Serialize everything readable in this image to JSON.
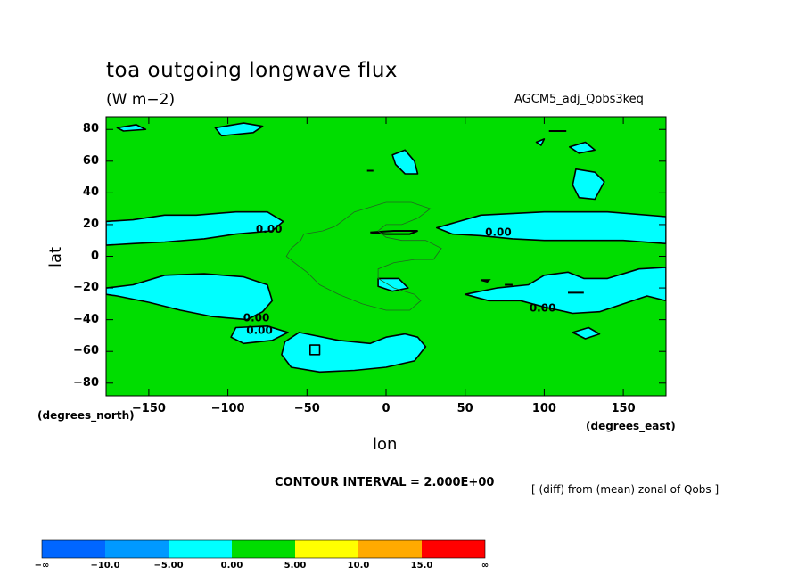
{
  "header": {
    "title": "toa outgoing longwave flux",
    "units": "(W m−2)",
    "model": "AGCM5_adj_Qobs3keq"
  },
  "axes": {
    "xlabel": "lon",
    "ylabel": "lat",
    "x_note": "(degrees_east)",
    "y_note": "(degrees_north)"
  },
  "footer": {
    "contour_interval": "CONTOUR INTERVAL = 2.000E+00",
    "diff_note": "[ (diff) from (mean) zonal of Qobs ]"
  },
  "chart_data": {
    "type": "heatmap",
    "x_ticks": [
      "−150",
      "−100",
      "−50",
      "0",
      "50",
      "100",
      "150"
    ],
    "x_tick_values": [
      -150,
      -100,
      -50,
      0,
      50,
      100,
      150
    ],
    "y_ticks": [
      "80",
      "60",
      "40",
      "20",
      "0",
      "−20",
      "−40",
      "−60",
      "−80"
    ],
    "y_tick_values": [
      80,
      60,
      40,
      20,
      0,
      -20,
      -40,
      -60,
      -80
    ],
    "xlim": [
      -177,
      177
    ],
    "ylim": [
      -88,
      88
    ],
    "grid": false,
    "contour_labels": [
      {
        "text": "0.00",
        "lon": -74,
        "lat": 17
      },
      {
        "text": "0.00",
        "lon": -82,
        "lat": -39
      },
      {
        "text": "0.00",
        "lon": -80,
        "lat": -47
      },
      {
        "text": "0.00",
        "lon": 71,
        "lat": 15
      },
      {
        "text": "0.00",
        "lon": 99,
        "lat": -33
      }
    ],
    "colorbar": {
      "colors": [
        "#0066ff",
        "#0099ff",
        "#00ffff",
        "#00dd00",
        "#ffff00",
        "#ffaa00",
        "#ff0000"
      ],
      "labels": [
        "−∞",
        "−10.0",
        "−5.00",
        "0.00",
        "5.00",
        "10.0",
        "15.0",
        "∞"
      ]
    },
    "regions": [
      {
        "level": "negative",
        "lon_lat": [
          [
            -177,
            22
          ],
          [
            -160,
            23
          ],
          [
            -140,
            26
          ],
          [
            -120,
            26
          ],
          [
            -95,
            28
          ],
          [
            -75,
            28
          ],
          [
            -65,
            22
          ],
          [
            -72,
            16
          ],
          [
            -95,
            14
          ],
          [
            -115,
            11
          ],
          [
            -140,
            9
          ],
          [
            -160,
            8
          ],
          [
            -177,
            7
          ]
        ]
      },
      {
        "level": "negative",
        "lon_lat": [
          [
            -177,
            -20
          ],
          [
            -160,
            -18
          ],
          [
            -140,
            -12
          ],
          [
            -115,
            -11
          ],
          [
            -90,
            -13
          ],
          [
            -75,
            -18
          ],
          [
            -72,
            -28
          ],
          [
            -78,
            -35
          ],
          [
            -88,
            -40
          ],
          [
            -110,
            -38
          ],
          [
            -130,
            -34
          ],
          [
            -150,
            -29
          ],
          [
            -170,
            -25
          ],
          [
            -177,
            -24
          ]
        ]
      },
      {
        "level": "negative",
        "lon_lat": [
          [
            -95,
            -45
          ],
          [
            -75,
            -44
          ],
          [
            -62,
            -48
          ],
          [
            -72,
            -53
          ],
          [
            -90,
            -55
          ],
          [
            -98,
            -51
          ]
        ]
      },
      {
        "level": "negative",
        "lon_lat": [
          [
            -64,
            -54
          ],
          [
            -55,
            -48
          ],
          [
            -30,
            -53
          ],
          [
            -10,
            -55
          ],
          [
            0,
            -51
          ],
          [
            12,
            -49
          ],
          [
            20,
            -51
          ],
          [
            25,
            -57
          ],
          [
            18,
            -66
          ],
          [
            0,
            -70
          ],
          [
            -20,
            -72
          ],
          [
            -42,
            -73
          ],
          [
            -60,
            -70
          ],
          [
            -66,
            -62
          ]
        ]
      },
      {
        "level": "negative",
        "lon_lat": [
          [
            -108,
            81
          ],
          [
            -90,
            84
          ],
          [
            -78,
            82
          ],
          [
            -84,
            78
          ],
          [
            -104,
            76
          ]
        ]
      },
      {
        "level": "negative",
        "lon_lat": [
          [
            -170,
            81
          ],
          [
            -158,
            83
          ],
          [
            -152,
            80
          ],
          [
            -166,
            79
          ]
        ]
      },
      {
        "level": "negative",
        "lon_lat": [
          [
            32,
            18
          ],
          [
            60,
            26
          ],
          [
            100,
            28
          ],
          [
            140,
            28
          ],
          [
            177,
            25
          ],
          [
            177,
            8
          ],
          [
            150,
            10
          ],
          [
            130,
            10
          ],
          [
            100,
            10
          ],
          [
            80,
            11
          ],
          [
            60,
            13
          ],
          [
            42,
            14
          ]
        ]
      },
      {
        "level": "negative",
        "lon_lat": [
          [
            50,
            -24
          ],
          [
            70,
            -20
          ],
          [
            90,
            -18
          ],
          [
            100,
            -12
          ],
          [
            115,
            -10
          ],
          [
            125,
            -14
          ],
          [
            140,
            -14
          ],
          [
            160,
            -8
          ],
          [
            177,
            -7
          ],
          [
            177,
            -28
          ],
          [
            165,
            -25
          ],
          [
            150,
            -30
          ],
          [
            135,
            -35
          ],
          [
            118,
            -36
          ],
          [
            100,
            -32
          ],
          [
            85,
            -28
          ],
          [
            65,
            -28
          ]
        ]
      },
      {
        "level": "negative",
        "lon_lat": [
          [
            118,
            -48
          ],
          [
            128,
            -45
          ],
          [
            135,
            -49
          ],
          [
            126,
            -52
          ]
        ]
      },
      {
        "level": "negative",
        "lon_lat": [
          [
            4,
            64
          ],
          [
            12,
            67
          ],
          [
            18,
            60
          ],
          [
            20,
            52
          ],
          [
            12,
            52
          ],
          [
            6,
            58
          ]
        ]
      },
      {
        "level": "negative",
        "lon_lat": [
          [
            120,
            55
          ],
          [
            132,
            53
          ],
          [
            138,
            47
          ],
          [
            132,
            36
          ],
          [
            122,
            37
          ],
          [
            118,
            45
          ]
        ]
      },
      {
        "level": "negative",
        "lon_lat": [
          [
            116,
            69
          ],
          [
            126,
            72
          ],
          [
            132,
            67
          ],
          [
            122,
            65
          ]
        ]
      },
      {
        "level": "negative",
        "lon_lat": [
          [
            -5,
            -14
          ],
          [
            8,
            -14
          ],
          [
            14,
            -20
          ],
          [
            4,
            -22
          ],
          [
            -5,
            -19
          ]
        ]
      },
      {
        "level": "negative",
        "lon_lat": [
          [
            -48,
            -56
          ],
          [
            -42,
            -56
          ],
          [
            -42,
            -62
          ],
          [
            -48,
            -62
          ]
        ]
      },
      {
        "level": "negative",
        "lon_lat": [
          [
            95,
            72
          ],
          [
            100,
            74
          ],
          [
            98,
            70
          ]
        ]
      }
    ],
    "zero_lines": [
      {
        "lon_lat": [
          [
            -10,
            15
          ],
          [
            0,
            14
          ],
          [
            15,
            14
          ],
          [
            20,
            16
          ],
          [
            5,
            16
          ],
          [
            -10,
            15
          ]
        ]
      },
      {
        "lon_lat": [
          [
            60,
            -15
          ],
          [
            65,
            -15
          ],
          [
            64,
            -16
          ],
          [
            60,
            -15
          ]
        ]
      },
      {
        "lon_lat": [
          [
            75,
            -18
          ],
          [
            80,
            -18
          ]
        ]
      },
      {
        "lon_lat": [
          [
            103,
            79
          ],
          [
            114,
            79
          ]
        ]
      },
      {
        "lon_lat": [
          [
            -12,
            54
          ],
          [
            -8,
            54
          ]
        ]
      },
      {
        "lon_lat": [
          [
            115,
            -23
          ],
          [
            125,
            -23
          ]
        ]
      }
    ],
    "thin_lines": [
      {
        "lon_lat": [
          [
            -32,
            19
          ],
          [
            -20,
            28
          ],
          [
            0,
            34
          ],
          [
            16,
            34
          ],
          [
            28,
            30
          ],
          [
            20,
            24
          ],
          [
            10,
            20
          ],
          [
            0,
            20
          ],
          [
            -5,
            16
          ],
          [
            0,
            12
          ],
          [
            10,
            10
          ],
          [
            25,
            10
          ],
          [
            35,
            5
          ],
          [
            30,
            -2
          ],
          [
            18,
            -2
          ],
          [
            5,
            -4
          ],
          [
            -5,
            -8
          ],
          [
            -5,
            -14
          ],
          [
            5,
            -20
          ],
          [
            18,
            -24
          ],
          [
            22,
            -28
          ],
          [
            15,
            -34
          ],
          [
            0,
            -34
          ],
          [
            -15,
            -30
          ],
          [
            -30,
            -24
          ],
          [
            -42,
            -18
          ],
          [
            -50,
            -10
          ],
          [
            -58,
            -4
          ],
          [
            -63,
            0
          ],
          [
            -60,
            5
          ],
          [
            -54,
            10
          ],
          [
            -52,
            14
          ],
          [
            -40,
            16
          ],
          [
            -32,
            19
          ]
        ]
      }
    ]
  }
}
